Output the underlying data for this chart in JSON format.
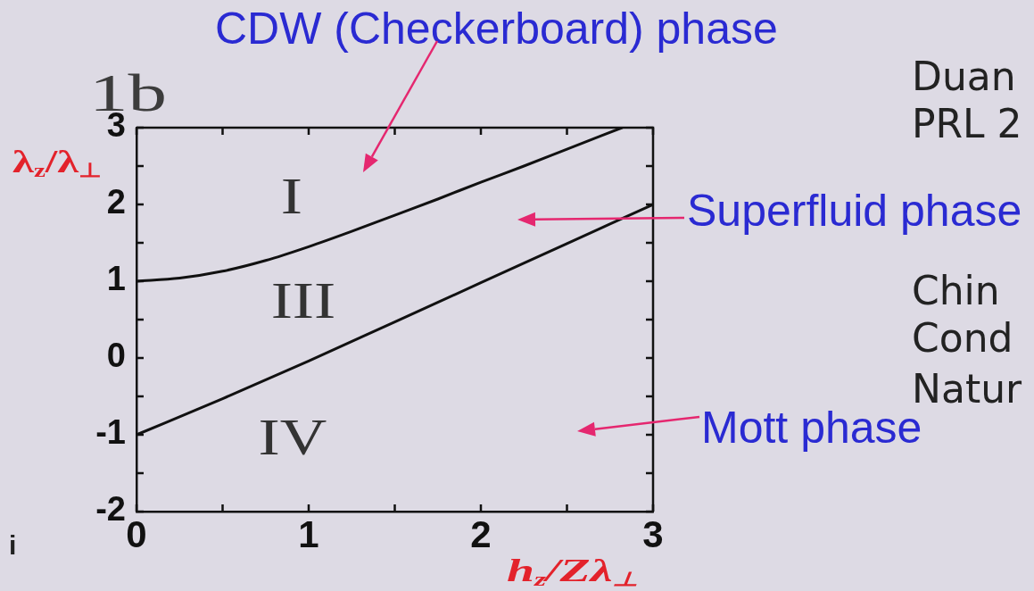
{
  "chart_data": {
    "type": "line",
    "xlabel": "h$_{z}$/Zλ$_{⊥}$",
    "ylabel": "λ$_{z}$/λ$_{⊥}$",
    "xlim": [
      0,
      3
    ],
    "ylim": [
      -2,
      3
    ],
    "xticks": [
      0,
      {
        "value": 0.5,
        "label": null
      },
      1,
      {
        "value": 1.5,
        "label": null
      },
      2,
      {
        "value": 2.5,
        "label": null
      },
      3
    ],
    "yticks": [
      -2,
      {
        "value": -1.5,
        "label": null
      },
      -1,
      {
        "value": -0.5,
        "label": null
      },
      0,
      {
        "value": 0.5,
        "label": null
      },
      1,
      {
        "value": 1.5,
        "label": null
      },
      2,
      {
        "value": 2.5,
        "label": null
      },
      3
    ],
    "grid": false,
    "marker": "none",
    "series": [
      {
        "color": "#111111",
        "x": [
          0,
          0.25,
          0.5,
          0.75,
          1,
          1.25,
          1.5,
          1.75,
          2,
          2.25,
          2.5,
          2.82
        ],
        "values": [
          1,
          1.04,
          1.13,
          1.27,
          1.45,
          1.65,
          1.86,
          2.07,
          2.29,
          2.5,
          2.72,
          3
        ]
      },
      {
        "color": "#111111",
        "x": [
          0,
          0.5,
          1,
          1.5,
          2,
          2.5,
          3
        ],
        "values": [
          -1,
          -0.53,
          -0.04,
          0.47,
          0.98,
          1.49,
          2
        ]
      }
    ],
    "annotations": [
      "1b",
      "CDW (Checkerboard) phase",
      "Duan",
      "PRL 2",
      "I",
      "Superfluid phase",
      "Chin",
      "Cond",
      "Natur",
      "III",
      "IV",
      "Mott phase",
      "i"
    ]
  }
}
